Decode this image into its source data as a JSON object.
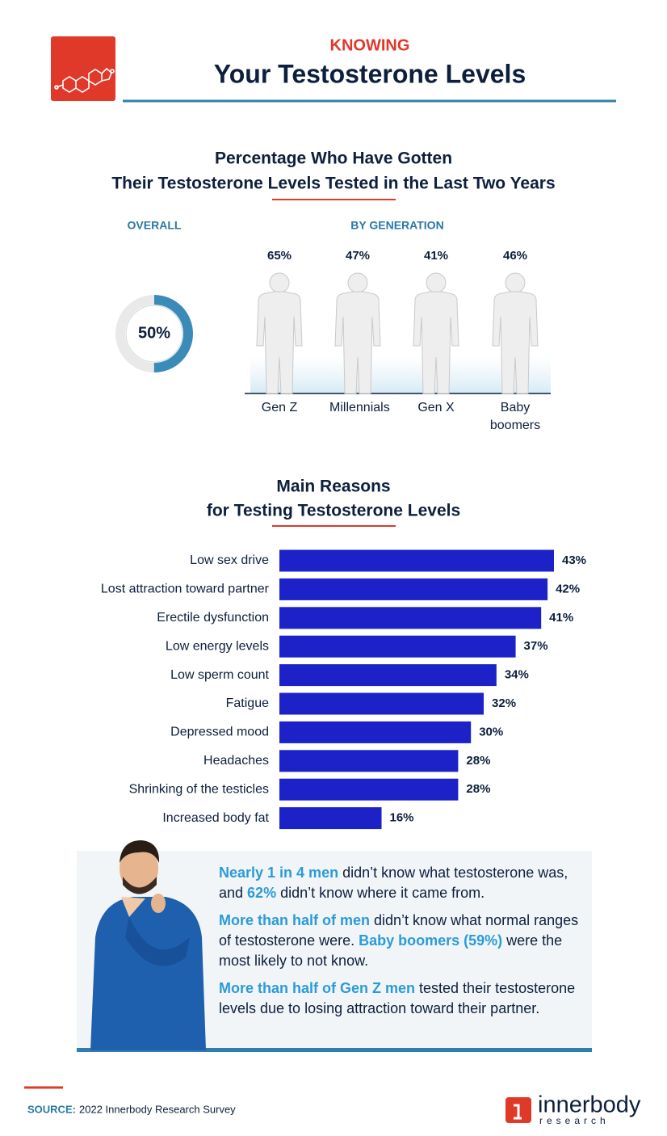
{
  "header": {
    "kicker": "KNOWING",
    "title": "Your Testosterone Levels"
  },
  "chart_data": [
    {
      "type": "donut",
      "title": [
        "Percentage Who Have Gotten",
        "Their Testosterone Levels Tested in the Last Two Years"
      ],
      "subtitle": "OVERALL",
      "values": [
        50
      ],
      "value_labels": [
        "50%"
      ],
      "color": "#3a8bb8"
    },
    {
      "type": "figure-fill",
      "subtitle": "BY GENERATION",
      "categories": [
        "Gen Z",
        "Millennials",
        "Gen X",
        "Baby boomers"
      ],
      "values": [
        65,
        47,
        41,
        46
      ],
      "value_labels": [
        "65%",
        "47%",
        "41%",
        "46%"
      ],
      "color": "#3a8bb8"
    },
    {
      "type": "hbar",
      "title": [
        "Main Reasons",
        "for Testing Testosterone Levels"
      ],
      "categories": [
        "Low sex drive",
        "Lost attraction toward partner",
        "Erectile dysfunction",
        "Low energy levels",
        "Low sperm count",
        "Fatigue",
        "Depressed mood",
        "Headaches",
        "Shrinking of the testicles",
        "Increased body fat"
      ],
      "values": [
        43,
        42,
        41,
        37,
        34,
        32,
        30,
        28,
        28,
        16
      ],
      "value_labels": [
        "43%",
        "42%",
        "41%",
        "37%",
        "34%",
        "32%",
        "30%",
        "28%",
        "28%",
        "16%"
      ],
      "color": "#1c22c7"
    }
  ],
  "callout": {
    "paragraphs": [
      [
        {
          "text": "Nearly 1 in 4 men",
          "highlight": true
        },
        {
          "text": " didn’t know what testosterone was, and "
        },
        {
          "text": "62%",
          "highlight": true
        },
        {
          "text": " didn’t know where it came from."
        }
      ],
      [
        {
          "text": "More than half of men",
          "highlight": true
        },
        {
          "text": " didn’t know what normal ranges of testosterone were. "
        },
        {
          "text": "Baby boomers (59%)",
          "highlight": true
        },
        {
          "text": " were the most likely to not know."
        }
      ],
      [
        {
          "text": "More than half of Gen Z men",
          "highlight": true
        },
        {
          "text": " tested their testosterone levels due to losing attraction toward their partner."
        }
      ]
    ]
  },
  "source": {
    "label": "SOURCE:",
    "text": "2022 Innerbody Research Survey"
  },
  "logo": {
    "name": "innerbody",
    "tagline": "research"
  }
}
